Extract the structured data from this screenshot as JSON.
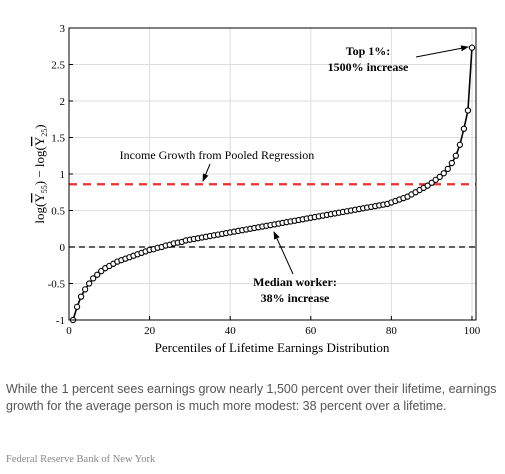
{
  "chart_data": {
    "type": "line",
    "xlabel": "Percentiles of Lifetime Earnings Distribution",
    "ylabel_parts": {
      "a": "log(",
      "b": "Y",
      "c": "55",
      "d": ") − log(",
      "e": "Y",
      "f": "25",
      "g": ")"
    },
    "xlim": [
      0,
      101
    ],
    "ylim": [
      -1,
      3
    ],
    "xticks": [
      0,
      20,
      40,
      60,
      80,
      100
    ],
    "yticks": [
      {
        "value": -1,
        "label": "-1"
      },
      {
        "value": -0.5,
        "label": "-0.5"
      },
      {
        "value": 0,
        "label": "0"
      },
      {
        "value": 0.5,
        "label": "0.5"
      },
      {
        "value": 1,
        "label": "1"
      },
      {
        "value": 1.5,
        "label": "1.5"
      },
      {
        "value": 2,
        "label": "2"
      },
      {
        "value": 2.5,
        "label": "2.5"
      },
      {
        "value": 3,
        "label": "3"
      }
    ],
    "grid": true,
    "reference_lines": [
      {
        "y": 0.86,
        "color": "#e8322f",
        "style": "dashed"
      },
      {
        "y": 0,
        "color": "#000000",
        "style": "dashed"
      }
    ],
    "series": [
      {
        "marker": "circle",
        "x": [
          1,
          2,
          3,
          4,
          5,
          6,
          7,
          8,
          9,
          10,
          11,
          12,
          13,
          14,
          15,
          16,
          17,
          18,
          19,
          20,
          21,
          22,
          23,
          24,
          25,
          26,
          27,
          28,
          29,
          30,
          31,
          32,
          33,
          34,
          35,
          36,
          37,
          38,
          39,
          40,
          41,
          42,
          43,
          44,
          45,
          46,
          47,
          48,
          49,
          50,
          51,
          52,
          53,
          54,
          55,
          56,
          57,
          58,
          59,
          60,
          61,
          62,
          63,
          64,
          65,
          66,
          67,
          68,
          69,
          70,
          71,
          72,
          73,
          74,
          75,
          76,
          77,
          78,
          79,
          80,
          81,
          82,
          83,
          84,
          85,
          86,
          87,
          88,
          89,
          90,
          91,
          92,
          93,
          94,
          95,
          96,
          97,
          98,
          99,
          100
        ],
        "y": [
          -1.0,
          -0.82,
          -0.68,
          -0.58,
          -0.5,
          -0.43,
          -0.38,
          -0.33,
          -0.29,
          -0.26,
          -0.23,
          -0.2,
          -0.18,
          -0.16,
          -0.14,
          -0.12,
          -0.1,
          -0.08,
          -0.06,
          -0.04,
          -0.03,
          -0.01,
          0.0,
          0.02,
          0.03,
          0.05,
          0.06,
          0.07,
          0.09,
          0.1,
          0.11,
          0.12,
          0.13,
          0.14,
          0.15,
          0.16,
          0.17,
          0.18,
          0.19,
          0.2,
          0.21,
          0.22,
          0.23,
          0.24,
          0.25,
          0.26,
          0.27,
          0.28,
          0.29,
          0.3,
          0.31,
          0.32,
          0.33,
          0.34,
          0.35,
          0.36,
          0.37,
          0.38,
          0.39,
          0.4,
          0.41,
          0.42,
          0.43,
          0.44,
          0.45,
          0.46,
          0.47,
          0.48,
          0.49,
          0.5,
          0.51,
          0.52,
          0.53,
          0.54,
          0.55,
          0.56,
          0.57,
          0.58,
          0.59,
          0.61,
          0.63,
          0.65,
          0.67,
          0.69,
          0.72,
          0.75,
          0.78,
          0.81,
          0.84,
          0.88,
          0.92,
          0.96,
          1.01,
          1.07,
          1.15,
          1.25,
          1.4,
          1.62,
          1.87,
          2.73
        ]
      }
    ],
    "annotations": [
      {
        "lines": [
          "Income Growth from Pooled Regression"
        ],
        "style": "normal"
      },
      {
        "lines": [
          "Top 1%:",
          "1500% increase"
        ],
        "style": "bold"
      },
      {
        "lines": [
          "Median worker:",
          "38% increase"
        ],
        "style": "bold"
      }
    ]
  },
  "caption": "While the 1 percent sees earnings grow nearly 1,500 percent over their lifetime, earnings growth for the average person is much more modest: 38 percent over a lifetime.",
  "credit": "Federal Reserve Bank of New York"
}
